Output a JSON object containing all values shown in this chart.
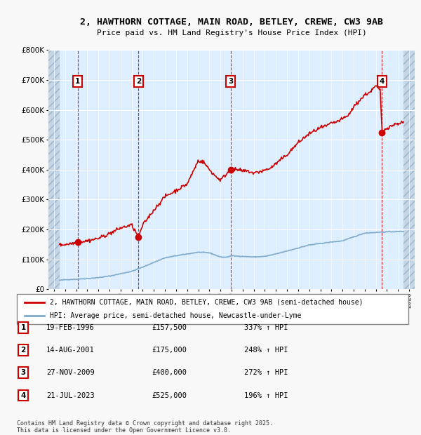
{
  "title": "2, HAWTHORN COTTAGE, MAIN ROAD, BETLEY, CREWE, CW3 9AB",
  "subtitle": "Price paid vs. HM Land Registry's House Price Index (HPI)",
  "transactions": [
    {
      "num": 1,
      "date": "19-FEB-1996",
      "year": 1996.13,
      "price": 157500,
      "hpi_pct": "337%"
    },
    {
      "num": 2,
      "date": "14-AUG-2001",
      "year": 2001.62,
      "price": 175000,
      "hpi_pct": "248%"
    },
    {
      "num": 3,
      "date": "27-NOV-2009",
      "year": 2009.91,
      "price": 400000,
      "hpi_pct": "272%"
    },
    {
      "num": 4,
      "date": "21-JUL-2023",
      "year": 2023.55,
      "price": 525000,
      "hpi_pct": "196%"
    }
  ],
  "legend_line1": "2, HAWTHORN COTTAGE, MAIN ROAD, BETLEY, CREWE, CW3 9AB (semi-detached house)",
  "legend_line2": "HPI: Average price, semi-detached house, Newcastle-under-Lyme",
  "footer": "Contains HM Land Registry data © Crown copyright and database right 2025.\nThis data is licensed under the Open Government Licence v3.0.",
  "ylim": [
    0,
    800000
  ],
  "xlim": [
    1993.5,
    2026.5
  ],
  "property_color": "#cc0000",
  "hpi_color": "#7faacc",
  "background_color": "#ddeeff",
  "grid_color": "#ffffff",
  "xmin_data": 1994.5,
  "xmax_data": 2025.5,
  "hpi_base": [
    [
      1994.5,
      30000
    ],
    [
      1995,
      32000
    ],
    [
      1996,
      33500
    ],
    [
      1997,
      36000
    ],
    [
      1998,
      39000
    ],
    [
      1999,
      44000
    ],
    [
      2000,
      52000
    ],
    [
      2001,
      60000
    ],
    [
      2002,
      74000
    ],
    [
      2003,
      90000
    ],
    [
      2004,
      105000
    ],
    [
      2005,
      112000
    ],
    [
      2006,
      118000
    ],
    [
      2007,
      124000
    ],
    [
      2008,
      122000
    ],
    [
      2009,
      108000
    ],
    [
      2009.5,
      107000
    ],
    [
      2010,
      112000
    ],
    [
      2011,
      110000
    ],
    [
      2012,
      108000
    ],
    [
      2013,
      110000
    ],
    [
      2014,
      118000
    ],
    [
      2015,
      128000
    ],
    [
      2016,
      138000
    ],
    [
      2017,
      148000
    ],
    [
      2018,
      153000
    ],
    [
      2019,
      158000
    ],
    [
      2020,
      162000
    ],
    [
      2021,
      175000
    ],
    [
      2022,
      188000
    ],
    [
      2023,
      190000
    ],
    [
      2024,
      192000
    ],
    [
      2025,
      193000
    ],
    [
      2025.5,
      193500
    ]
  ],
  "prop_base": [
    [
      1994.5,
      148000
    ],
    [
      1995,
      150000
    ],
    [
      1996.0,
      156000
    ],
    [
      1996.13,
      157500
    ],
    [
      1997,
      162000
    ],
    [
      1998,
      170000
    ],
    [
      1999,
      186000
    ],
    [
      2000,
      205000
    ],
    [
      2001.0,
      215000
    ],
    [
      2001.62,
      175000
    ],
    [
      2002,
      215000
    ],
    [
      2003,
      265000
    ],
    [
      2004,
      310000
    ],
    [
      2005,
      330000
    ],
    [
      2006,
      352000
    ],
    [
      2007,
      430000
    ],
    [
      2007.5,
      425000
    ],
    [
      2008,
      400000
    ],
    [
      2008.5,
      380000
    ],
    [
      2009.0,
      365000
    ],
    [
      2009.91,
      400000
    ],
    [
      2010,
      398000
    ],
    [
      2010.5,
      400000
    ],
    [
      2011,
      395000
    ],
    [
      2011.5,
      395000
    ],
    [
      2012,
      388000
    ],
    [
      2012.5,
      393000
    ],
    [
      2013,
      398000
    ],
    [
      2013.5,
      405000
    ],
    [
      2014,
      420000
    ],
    [
      2015,
      450000
    ],
    [
      2016,
      490000
    ],
    [
      2017,
      520000
    ],
    [
      2018,
      540000
    ],
    [
      2018.5,
      545000
    ],
    [
      2019,
      555000
    ],
    [
      2019.5,
      560000
    ],
    [
      2020,
      570000
    ],
    [
      2020.5,
      580000
    ],
    [
      2021,
      610000
    ],
    [
      2021.5,
      630000
    ],
    [
      2022,
      650000
    ],
    [
      2022.5,
      660000
    ],
    [
      2023.0,
      680000
    ],
    [
      2023.4,
      665000
    ],
    [
      2023.55,
      525000
    ],
    [
      2023.7,
      530000
    ],
    [
      2024.0,
      540000
    ],
    [
      2024.5,
      548000
    ],
    [
      2025,
      555000
    ],
    [
      2025.5,
      558000
    ]
  ]
}
